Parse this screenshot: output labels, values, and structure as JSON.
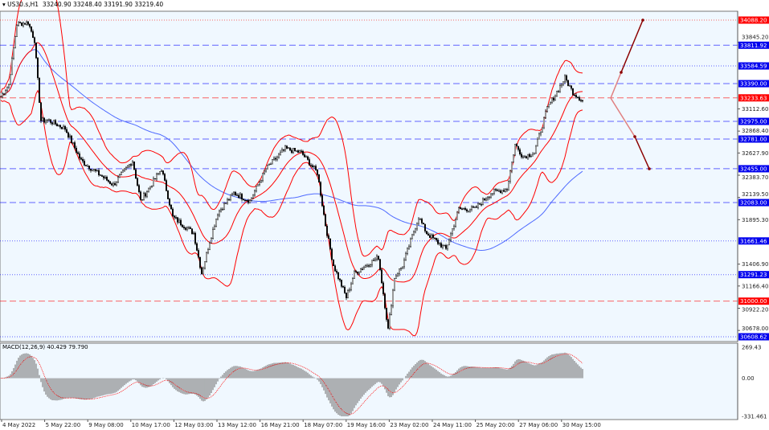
{
  "header": {
    "symbol": "US30.s,H1",
    "ohlc": "33240.90 33248.40 33191.90 33219.40"
  },
  "colors": {
    "bg": "#f0f8ff",
    "grid_blue": "#3b3bff",
    "red": "#ff0000",
    "ma_blue": "#4f6bff",
    "arrow": "#8b0000"
  },
  "chart_data": {
    "type": "candlestick",
    "ylim": [
      30608.62,
      34088.2
    ],
    "close_path": [
      [
        0,
        33249
      ],
      [
        5,
        33381
      ],
      [
        10,
        34044
      ],
      [
        17,
        34062
      ],
      [
        21,
        33867
      ],
      [
        25,
        32984
      ],
      [
        30,
        32984
      ],
      [
        40,
        32896
      ],
      [
        50,
        32543
      ],
      [
        60,
        32410
      ],
      [
        70,
        32278
      ],
      [
        82,
        32543
      ],
      [
        87,
        32101
      ],
      [
        100,
        32454
      ],
      [
        107,
        31924
      ],
      [
        120,
        31748
      ],
      [
        125,
        31306
      ],
      [
        130,
        31659
      ],
      [
        135,
        31969
      ],
      [
        145,
        32189
      ],
      [
        155,
        32101
      ],
      [
        165,
        32454
      ],
      [
        177,
        32675
      ],
      [
        187,
        32631
      ],
      [
        197,
        32410
      ],
      [
        202,
        31836
      ],
      [
        207,
        31394
      ],
      [
        215,
        31041
      ],
      [
        220,
        31306
      ],
      [
        235,
        31483
      ],
      [
        241,
        30688
      ],
      [
        245,
        31262
      ],
      [
        250,
        31394
      ],
      [
        260,
        31924
      ],
      [
        265,
        31748
      ],
      [
        277,
        31571
      ],
      [
        285,
        32013
      ],
      [
        295,
        32013
      ],
      [
        305,
        32189
      ],
      [
        315,
        32234
      ],
      [
        320,
        32719
      ],
      [
        325,
        32587
      ],
      [
        332,
        32631
      ],
      [
        340,
        33117
      ],
      [
        345,
        33267
      ],
      [
        351,
        33452
      ],
      [
        356,
        33293
      ],
      [
        362,
        33205
      ]
    ],
    "price_levels": [
      {
        "value": "34088.20",
        "color": "#ff0000",
        "style": "dotted"
      },
      {
        "value": "33811.92",
        "color": "#0000ff",
        "style": "dashed"
      },
      {
        "value": "33584.59",
        "color": "#0000ff",
        "style": "dotted"
      },
      {
        "value": "33390.00",
        "color": "#0000ff",
        "style": "dashed"
      },
      {
        "value": "33233.63",
        "color": "#ff0000",
        "style": "dashed"
      },
      {
        "value": "32975.00",
        "color": "#0000ff",
        "style": "dashed"
      },
      {
        "value": "32781.00",
        "color": "#0000ff",
        "style": "dashed"
      },
      {
        "value": "32455.00",
        "color": "#0000ff",
        "style": "dashed"
      },
      {
        "value": "32083.00",
        "color": "#0000ff",
        "style": "dashed"
      },
      {
        "value": "31661.46",
        "color": "#0000ff",
        "style": "dotted"
      },
      {
        "value": "31291.23",
        "color": "#0000ff",
        "style": "dotted"
      },
      {
        "value": "31000.00",
        "color": "#ff0000",
        "style": "dashed"
      },
      {
        "value": "30608.62",
        "color": "#0000ff",
        "style": "dotted"
      }
    ],
    "y_ticks": [
      "33845.20",
      "33112.60",
      "32868.40",
      "32627.90",
      "32383.70",
      "32139.50",
      "31895.30",
      "31406.90",
      "31166.40",
      "30922.20",
      "30678.00"
    ],
    "x_ticks": [
      "4 May 2022",
      "5 May 22:00",
      "9 May 08:00",
      "10 May 17:00",
      "12 May 03:00",
      "13 May 12:00",
      "16 May 21:00",
      "18 May 07:00",
      "19 May 16:00",
      "23 May 02:00",
      "24 May 11:00",
      "25 May 20:00",
      "27 May 06:00",
      "30 May 15:00"
    ],
    "macd": {
      "title": "MACD(12,26,9) 40.429 79.790",
      "ticks": [
        "269.43",
        "0.00",
        "-331.461"
      ],
      "ylim": [
        -331.461,
        269.43
      ]
    }
  }
}
